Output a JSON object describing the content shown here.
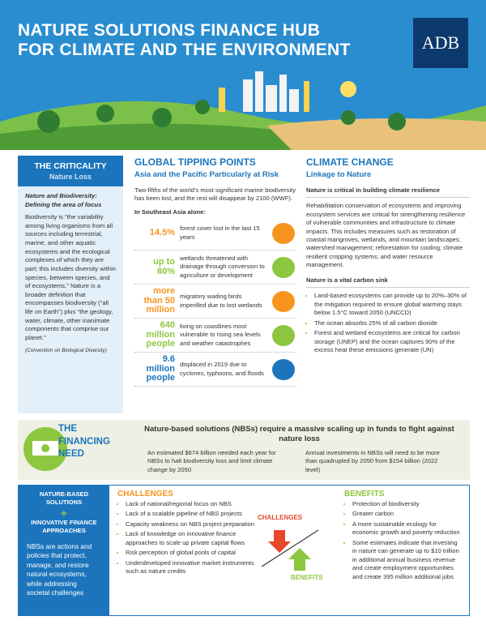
{
  "header": {
    "title_line1": "NATURE SOLUTIONS FINANCE HUB",
    "title_line2": "FOR CLIMATE AND THE ENVIRONMENT",
    "logo": "ADB"
  },
  "criticality": {
    "title": "THE CRITICALITY",
    "subtitle": "Nature Loss",
    "heading": "Nature and Biodiversity: Defining the area of focus",
    "body": "Biodiversity is “the variability among living organisms from all sources including terrestrial, marine, and other aquatic ecosystems and the ecological complexes of which they are part; this includes diversity within species, between species, and of ecosystems.” Nature is a broader definition that encompasses biodiversity (“all life on Earth”) plus “the geology, water, climate, other inanimate components that comprise our planet.”",
    "citation": "(Convention on Biological Diversity)"
  },
  "tipping": {
    "title": "GLOBAL TIPPING POINTS",
    "subtitle": "Asia and the Pacific Particularly at Risk",
    "intro": "Two-fifths of the world’s most significant marine biodiversity has been lost, and the rest will disappear by 2100 (WWF).",
    "lead": "In Southeast Asia alone:",
    "stats": [
      {
        "value": "14.5%",
        "text": "forest cover lost in the last 15 years"
      },
      {
        "value": "up to 80%",
        "text": "wetlands threatened with drainage through conversion to agriculture or development"
      },
      {
        "value": "more than 50 million",
        "text": "migratory wading birds imperilled due to lost wetlands"
      },
      {
        "value": "640 million people",
        "text": "living on coastlines most vulnerable to rising sea levels and weather catastrophes"
      },
      {
        "value": "9.6 million people",
        "text": "displaced in 2019 due to cyclones, typhoons, and floods"
      }
    ]
  },
  "climate": {
    "title": "CLIMATE CHANGE",
    "subtitle": "Linkage to Nature",
    "heading1": "Nature is critical in building climate resilience",
    "para1": "Rehabilitation conservation of ecosystems and improving ecosystem services are critical for strengthening resilience of vulnerable communities and infrastructure to climate impacts. This includes measures such as restoration of coastal mangroves, wetlands, and mountain landscapes; watershed management; reforestation for cooling; climate resilient cropping systems; and water resource management.",
    "heading2": "Nature is a vital carbon sink",
    "bullets": [
      "Land-based ecosystems can provide up to 20%–30% of the mitigation required to ensure global warming stays below 1.5°C toward 2050 (UNCCD)",
      "The ocean absorbs 25% of all carbon dioxide",
      "Forest and wetland ecosystems are critical for carbon storage (UNEP) and the ocean captures 90% of the excess heat these emissions generate (UN)"
    ]
  },
  "financing": {
    "label_line1": "THE",
    "label_line2": "FINANCING",
    "label_line3": "NEED",
    "heading": "Nature-based solutions (NBSs) require a massive scaling up in funds to fight against nature loss",
    "items": [
      "An estimated $674 billion needed each year for NBSs to halt biodiversity loss and limit climate change by 2050",
      "Annual investments in NBSs will need to be more than quadrupled by 2050 from $154 billion (2022 level)"
    ]
  },
  "solutions": {
    "label1": "NATURE-BASED SOLUTIONS",
    "plus": "+",
    "label2": "INNOVATIVE FINANCE APPROACHES",
    "description": "NBSs are actions and policies that protect, manage, and restore natural ecosystems, while addressing societal challenges",
    "challenges_title": "CHALLENGES",
    "challenges": [
      "Lack of national/regional focus on NBS",
      "Lack of a scalable pipeline of NBS projects",
      "Capacity weakness on NBS project preparation",
      "Lack of knowledge on innovative finance approaches to scale up private capital flows",
      "Risk perception of global pools of capital",
      "Underdeveloped innovative market instruments such as nature credits"
    ],
    "diagram_top": "CHALLENGES",
    "diagram_bottom": "BENEFITS",
    "benefits_title": "BENEFITS",
    "benefits": [
      "Protection of biodiversity",
      "Greater carbon",
      "A more sustainable ecology for economic growth and poverty reduction",
      "Some estimates indicate that investing in nature can generate up to $10 trillion in additional annual business revenue and create employment opportunities and create 395 million additional jobs"
    ]
  }
}
